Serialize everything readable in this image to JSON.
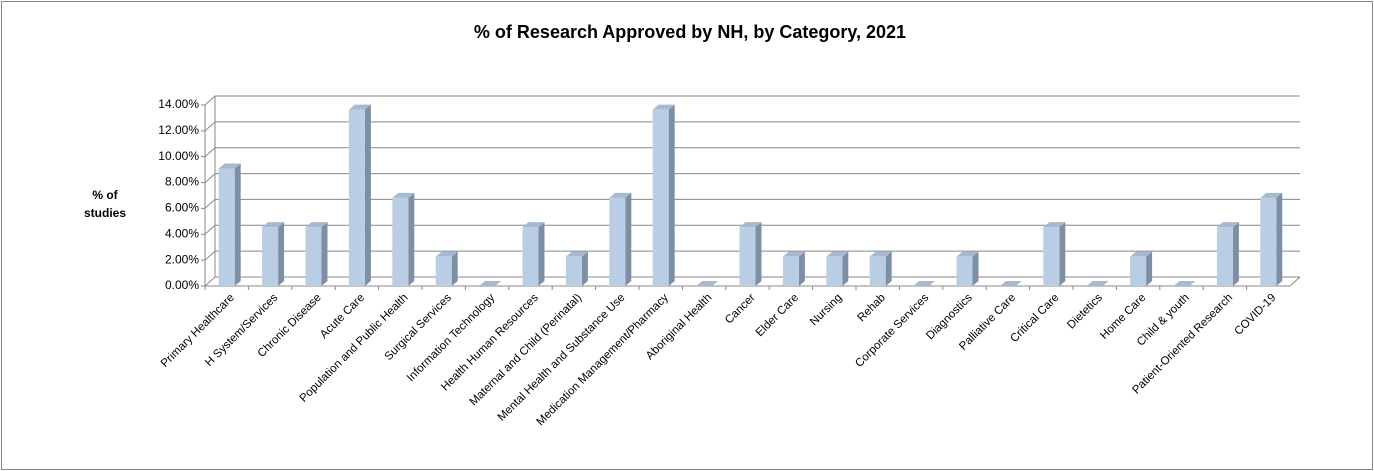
{
  "chart_data": {
    "type": "bar3d",
    "title": "% of Research Approved by NH, by Category, 2021",
    "y_label": "% of studies",
    "categories": [
      "Primary Healthcare",
      "H System/Services",
      "Chronic Disease",
      "Acute Care",
      "Population and Public Health",
      "Surgical Services",
      "Information Technology",
      "Health Human Resources",
      "Maternal and Child (Perinatal)",
      "Mental Health and Substance Use",
      "Medication Management/Pharmacy",
      "Aboriginal Health",
      "Cancer",
      "Elder Care",
      "Nursing",
      "Rehab",
      "Corporate Services",
      "Diagnostics",
      "Palliative Care",
      "Critical Care",
      "Dietetics",
      "Home Care",
      "Child & youth",
      "Patient-Oriented Research",
      "COVID-19"
    ],
    "values": [
      9.09,
      4.55,
      4.55,
      13.64,
      6.82,
      2.27,
      0,
      4.55,
      2.27,
      6.82,
      13.64,
      0,
      4.55,
      2.27,
      2.27,
      2.27,
      0,
      2.27,
      0,
      4.55,
      0,
      2.27,
      0,
      4.55,
      6.82
    ],
    "color": "#b9cde5",
    "ylim": [
      0,
      14
    ],
    "yticks": [
      {
        "value": 0,
        "label": "0.00%"
      },
      {
        "value": 2,
        "label": "2.00%"
      },
      {
        "value": 4,
        "label": "4.00%"
      },
      {
        "value": 6,
        "label": "6.00%"
      },
      {
        "value": 8,
        "label": "8.00%"
      },
      {
        "value": 10,
        "label": "10.00%"
      },
      {
        "value": 12,
        "label": "12.00%"
      },
      {
        "value": 14,
        "label": "14.00%"
      }
    ],
    "grid": true
  }
}
